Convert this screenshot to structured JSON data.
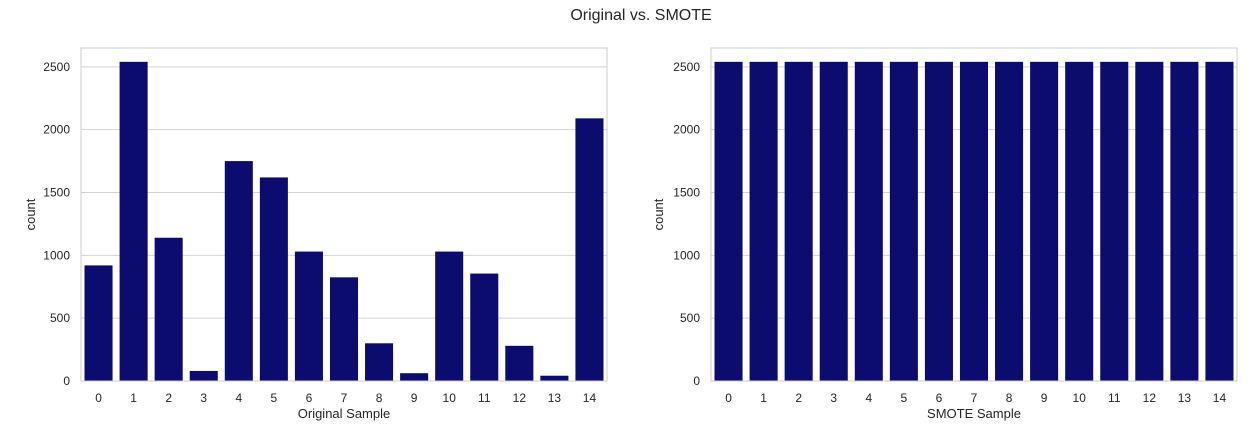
{
  "figure": {
    "title": "Original vs. SMOTE"
  },
  "chart_data": [
    {
      "type": "bar",
      "categories": [
        "0",
        "1",
        "2",
        "3",
        "4",
        "5",
        "6",
        "7",
        "8",
        "9",
        "10",
        "11",
        "12",
        "13",
        "14"
      ],
      "values": [
        920,
        2540,
        1140,
        80,
        1750,
        1620,
        1030,
        825,
        300,
        62,
        1030,
        855,
        280,
        42,
        2090
      ],
      "title": "",
      "xlabel": "Original Sample",
      "ylabel": "count",
      "ylim": [
        0,
        2650
      ],
      "yticks": [
        0,
        500,
        1000,
        1500,
        2000,
        2500
      ],
      "grid": "y",
      "legend": "none",
      "color": "#0c0c6f",
      "grid_color": "#d3d3d3",
      "spine_color": "#cccccc"
    },
    {
      "type": "bar",
      "categories": [
        "0",
        "1",
        "2",
        "3",
        "4",
        "5",
        "6",
        "7",
        "8",
        "9",
        "10",
        "11",
        "12",
        "13",
        "14"
      ],
      "values": [
        2540,
        2540,
        2540,
        2540,
        2540,
        2540,
        2540,
        2540,
        2540,
        2540,
        2540,
        2540,
        2540,
        2540,
        2540
      ],
      "title": "",
      "xlabel": "SMOTE Sample",
      "ylabel": "count",
      "ylim": [
        0,
        2650
      ],
      "yticks": [
        0,
        500,
        1000,
        1500,
        2000,
        2500
      ],
      "grid": "y",
      "legend": "none",
      "color": "#0c0c6f",
      "grid_color": "#d3d3d3",
      "spine_color": "#cccccc"
    }
  ]
}
